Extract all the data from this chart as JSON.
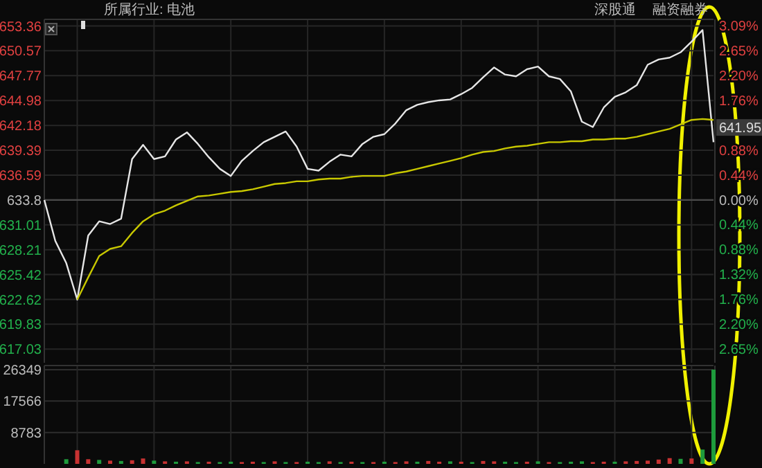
{
  "chart_data": [
    {
      "type": "line",
      "subtitle": "所属行业: 电池",
      "annotations": [
        "深股通",
        "融资融券",
        {
          "text": "641.95",
          "y": 641.95
        }
      ],
      "categories": [
        null,
        null,
        null,
        null,
        null,
        null,
        null,
        null,
        null,
        null,
        null,
        null,
        null,
        null,
        null,
        null,
        null,
        null,
        null,
        null,
        null,
        null,
        null,
        null,
        null,
        null,
        null,
        null,
        null,
        null,
        null,
        null,
        null,
        null,
        null,
        null,
        null,
        null,
        null,
        null,
        null,
        null,
        null,
        null,
        null,
        null,
        null,
        null,
        null,
        null,
        null,
        null,
        null,
        null,
        null,
        null,
        null,
        null,
        null,
        null,
        null,
        null
      ],
      "series": [
        {
          "color": "#e6e6e6",
          "values": [
            633.8,
            629.2,
            626.7,
            622.6,
            629.8,
            631.4,
            631.1,
            631.7,
            638.4,
            640.0,
            638.4,
            638.7,
            640.6,
            641.4,
            640.1,
            638.6,
            637.3,
            636.5,
            638.2,
            639.3,
            640.3,
            640.9,
            641.5,
            639.8,
            637.3,
            637.1,
            638.1,
            638.9,
            638.7,
            640.1,
            640.9,
            641.2,
            642.4,
            643.9,
            644.5,
            644.8,
            645.0,
            645.1,
            645.7,
            646.4,
            647.6,
            648.7,
            647.9,
            647.7,
            648.5,
            648.8,
            647.7,
            647.4,
            646.0,
            642.6,
            642.0,
            644.2,
            645.4,
            645.9,
            646.7,
            649.0,
            649.6,
            649.8,
            650.4,
            651.6,
            652.9,
            640.3
          ]
        },
        {
          "color": "#c8c800",
          "values": [
            null,
            null,
            null,
            622.6,
            625.1,
            627.5,
            628.3,
            628.6,
            630.1,
            631.4,
            632.2,
            632.6,
            633.2,
            633.7,
            634.2,
            634.3,
            634.5,
            634.7,
            634.8,
            635.0,
            635.3,
            635.6,
            635.7,
            635.9,
            635.9,
            636.1,
            636.2,
            636.2,
            636.4,
            636.5,
            636.5,
            636.5,
            636.8,
            637.0,
            637.3,
            637.6,
            637.9,
            638.2,
            638.5,
            638.9,
            639.2,
            639.3,
            639.6,
            639.8,
            639.9,
            640.1,
            640.3,
            640.3,
            640.4,
            640.4,
            640.6,
            640.6,
            640.7,
            640.7,
            640.9,
            641.2,
            641.5,
            641.8,
            642.3,
            642.8,
            642.9,
            642.8
          ]
        }
      ],
      "ylim": [
        615.5,
        654.1
      ],
      "yticks": [
        653.36,
        650.57,
        647.77,
        644.98,
        642.18,
        639.39,
        636.59,
        633.8,
        631.01,
        628.21,
        625.42,
        622.62,
        619.83,
        617.03
      ],
      "y2lim": [
        -2.89,
        3.2
      ],
      "y2ticks": [
        {
          "value": 3.09,
          "label": "3.09%"
        },
        {
          "value": 2.65,
          "label": "2.65%"
        },
        {
          "value": 2.2,
          "label": "2.20%"
        },
        {
          "value": 1.76,
          "label": "1.76%"
        },
        {
          "value": 0.88,
          "label": "0.88%"
        },
        {
          "value": 0.44,
          "label": "0.44%"
        },
        {
          "value": 0,
          "label": "0.00%"
        },
        {
          "value": -0.44,
          "label": "0.44%"
        },
        {
          "value": -0.88,
          "label": "0.88%"
        },
        {
          "value": -1.32,
          "label": "1.32%"
        },
        {
          "value": -1.76,
          "label": "1.76%"
        },
        {
          "value": -2.2,
          "label": "2.20%"
        },
        {
          "value": -2.65,
          "label": "2.65%"
        }
      ],
      "ref_lines": [
        {
          "axis": "y",
          "value": 633.8,
          "color": "#4a4a4a"
        }
      ],
      "grid": true,
      "marker": "none",
      "line_style": "solid"
    },
    {
      "type": "bar",
      "categories": [
        null,
        null,
        null,
        null,
        null,
        null,
        null,
        null,
        null,
        null,
        null,
        null,
        null,
        null,
        null,
        null,
        null,
        null,
        null,
        null,
        null,
        null,
        null,
        null,
        null,
        null,
        null,
        null,
        null,
        null,
        null,
        null,
        null,
        null,
        null,
        null,
        null,
        null,
        null,
        null,
        null,
        null,
        null,
        null,
        null,
        null,
        null,
        null,
        null,
        null,
        null,
        null,
        null,
        null,
        null,
        null,
        null,
        null,
        null,
        null,
        null,
        null
      ],
      "values": [
        null,
        null,
        1300,
        3800,
        1300,
        1100,
        900,
        800,
        1000,
        1500,
        900,
        700,
        600,
        700,
        500,
        600,
        500,
        600,
        500,
        600,
        500,
        700,
        500,
        500,
        600,
        500,
        700,
        500,
        600,
        500,
        500,
        600,
        500,
        700,
        600,
        800,
        600,
        700,
        600,
        500,
        800,
        700,
        600,
        500,
        600,
        700,
        500,
        500,
        600,
        700,
        500,
        600,
        600,
        700,
        800,
        900,
        1200,
        1600,
        1400,
        1500,
        4000,
        26349
      ],
      "colors": [
        null,
        null,
        "#1e9b3c",
        "#c83232",
        "#c83232",
        "#1e9b3c",
        "#c83232",
        "#1e9b3c",
        "#c83232",
        "#c83232",
        "#1e9b3c",
        "#c83232",
        "#1e9b3c",
        "#c83232",
        "#1e9b3c",
        "#c83232",
        "#1e9b3c",
        "#1e9b3c",
        "#c83232",
        "#c83232",
        "#1e9b3c",
        "#c83232",
        "#1e9b3c",
        "#c83232",
        "#1e9b3c",
        "#1e9b3c",
        "#c83232",
        "#1e9b3c",
        "#c83232",
        "#1e9b3c",
        "#c83232",
        "#1e9b3c",
        "#c83232",
        "#c83232",
        "#1e9b3c",
        "#c83232",
        "#c83232",
        "#1e9b3c",
        "#c83232",
        "#1e9b3c",
        "#c83232",
        "#c83232",
        "#1e9b3c",
        "#1e9b3c",
        "#c83232",
        "#1e9b3c",
        "#c83232",
        "#1e9b3c",
        "#1e9b3c",
        "#1e9b3c",
        "#c83232",
        "#c83232",
        "#1e9b3c",
        "#c83232",
        "#c83232",
        "#c83232",
        "#c83232",
        "#c83232",
        "#1e9b3c",
        "#c83232",
        "#1e9b3c",
        "#1e9b3c"
      ],
      "ylim": [
        0,
        27500
      ],
      "yticks": [
        8783,
        17566,
        26349
      ],
      "grid": true
    }
  ]
}
